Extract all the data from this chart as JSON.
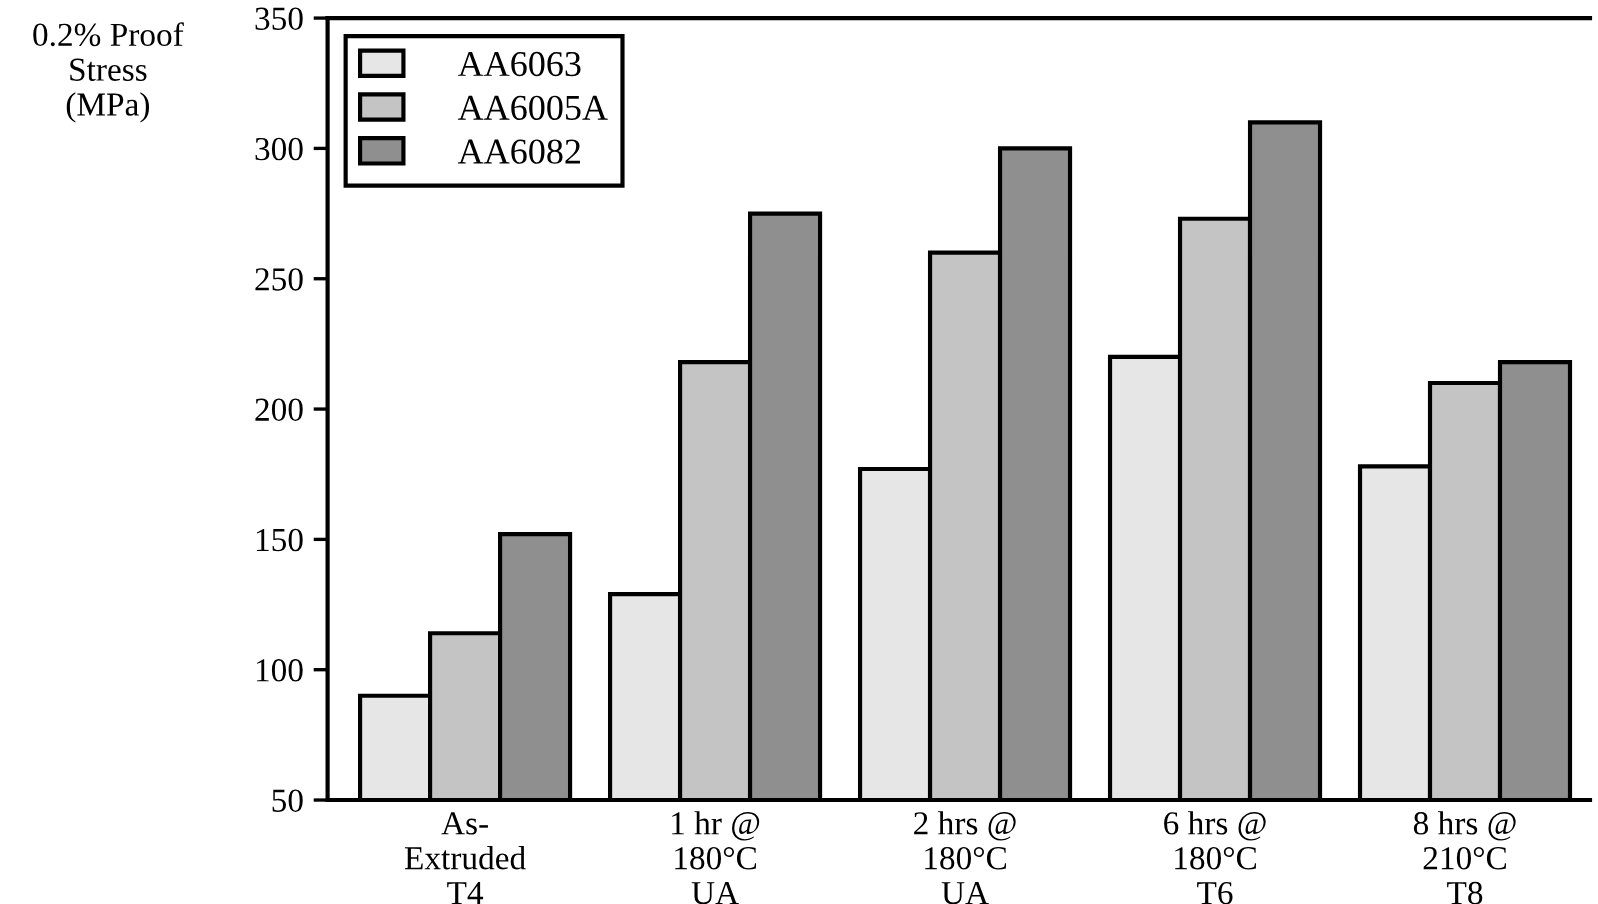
{
  "chart_data": {
    "type": "bar",
    "ylabel": "0.2% Proof\nStress\n(MPa)",
    "categories": [
      "As-\nExtruded\nT4",
      "1 hr @\n180°C\nUA",
      "2 hrs @\n180°C\nUA",
      "6 hrs @\n180°C\nT6",
      "8 hrs @\n210°C\nT8"
    ],
    "series": [
      {
        "name": "AA6063",
        "color": "#e6e6e6",
        "values": [
          90,
          129,
          177,
          220,
          178
        ]
      },
      {
        "name": "AA6005A",
        "color": "#c4c4c4",
        "values": [
          114,
          218,
          260,
          273,
          210
        ]
      },
      {
        "name": "AA6082",
        "color": "#8f8f8f",
        "values": [
          152,
          275,
          300,
          310,
          218
        ]
      }
    ],
    "ylim": [
      50,
      350
    ],
    "yticks": [
      50,
      100,
      150,
      200,
      250,
      300,
      350
    ],
    "grid": false,
    "legend": "top left"
  }
}
